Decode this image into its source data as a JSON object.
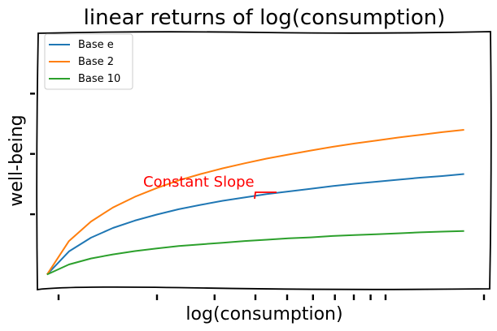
{
  "chart_data": {
    "type": "line",
    "title": "linear returns of log(consumption)",
    "xlabel": "log(consumption)",
    "ylabel": "well-being",
    "x": [
      1,
      2,
      3,
      4,
      5,
      6,
      7,
      8,
      9,
      10,
      11,
      12,
      13,
      14,
      15,
      16,
      17,
      18,
      19,
      20
    ],
    "xlim": [
      0.6,
      21.2
    ],
    "ylim": [
      -0.45,
      7.2
    ],
    "series": [
      {
        "name": "Base e",
        "color": "#1f77b4",
        "values": [
          0.0,
          0.69,
          1.1,
          1.39,
          1.61,
          1.79,
          1.95,
          2.08,
          2.2,
          2.3,
          2.4,
          2.48,
          2.56,
          2.64,
          2.71,
          2.77,
          2.83,
          2.89,
          2.94,
          3.0
        ]
      },
      {
        "name": "Base 2",
        "color": "#ff7f0e",
        "values": [
          0.0,
          1.0,
          1.58,
          2.0,
          2.32,
          2.58,
          2.81,
          3.0,
          3.17,
          3.32,
          3.46,
          3.58,
          3.7,
          3.81,
          3.91,
          4.0,
          4.09,
          4.17,
          4.25,
          4.32
        ]
      },
      {
        "name": "Base 10",
        "color": "#2ca02c",
        "values": [
          0.0,
          0.3,
          0.48,
          0.6,
          0.7,
          0.78,
          0.85,
          0.9,
          0.95,
          1.0,
          1.04,
          1.08,
          1.11,
          1.15,
          1.18,
          1.2,
          1.23,
          1.26,
          1.28,
          1.3
        ]
      }
    ],
    "legend": "top-left",
    "grid": false,
    "annotation": {
      "text": "Constant Slope",
      "color": "#ff0000"
    }
  }
}
